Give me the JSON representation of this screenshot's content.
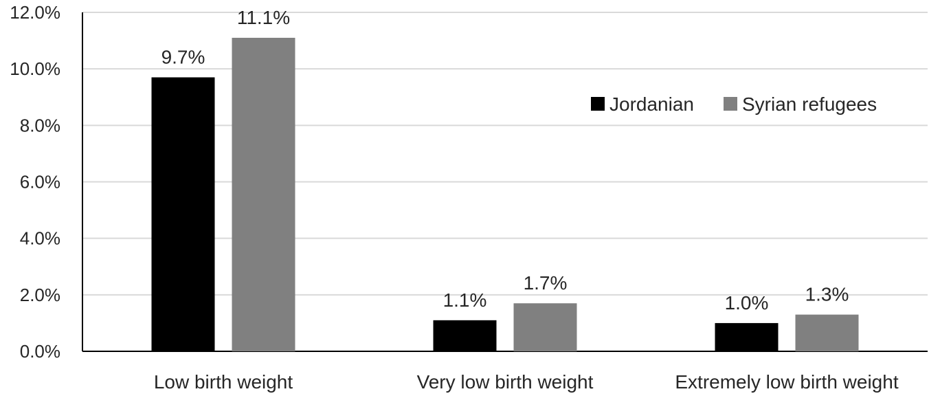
{
  "chart_data": {
    "type": "bar",
    "title": "",
    "xlabel": "",
    "ylabel": "",
    "categories": [
      "Low birth weight",
      "Very low birth weight",
      "Extremely low birth weight"
    ],
    "series": [
      {
        "name": "Jordanian",
        "values": [
          9.7,
          1.1,
          1.0
        ],
        "labels": [
          "9.7%",
          "1.1%",
          "1.0%"
        ],
        "color": "#000000"
      },
      {
        "name": "Syrian refugees",
        "values": [
          11.1,
          1.7,
          1.3
        ],
        "labels": [
          "11.1%",
          "1.7%",
          "1.3%"
        ],
        "color": "#808080"
      }
    ],
    "ylim": [
      0,
      12
    ],
    "yticks": [
      0,
      2,
      4,
      6,
      8,
      10,
      12
    ],
    "ytick_labels": [
      "0.0%",
      "2.0%",
      "4.0%",
      "6.0%",
      "8.0%",
      "10.0%",
      "12.0%"
    ],
    "grid": true,
    "legend_position": "top-right"
  }
}
